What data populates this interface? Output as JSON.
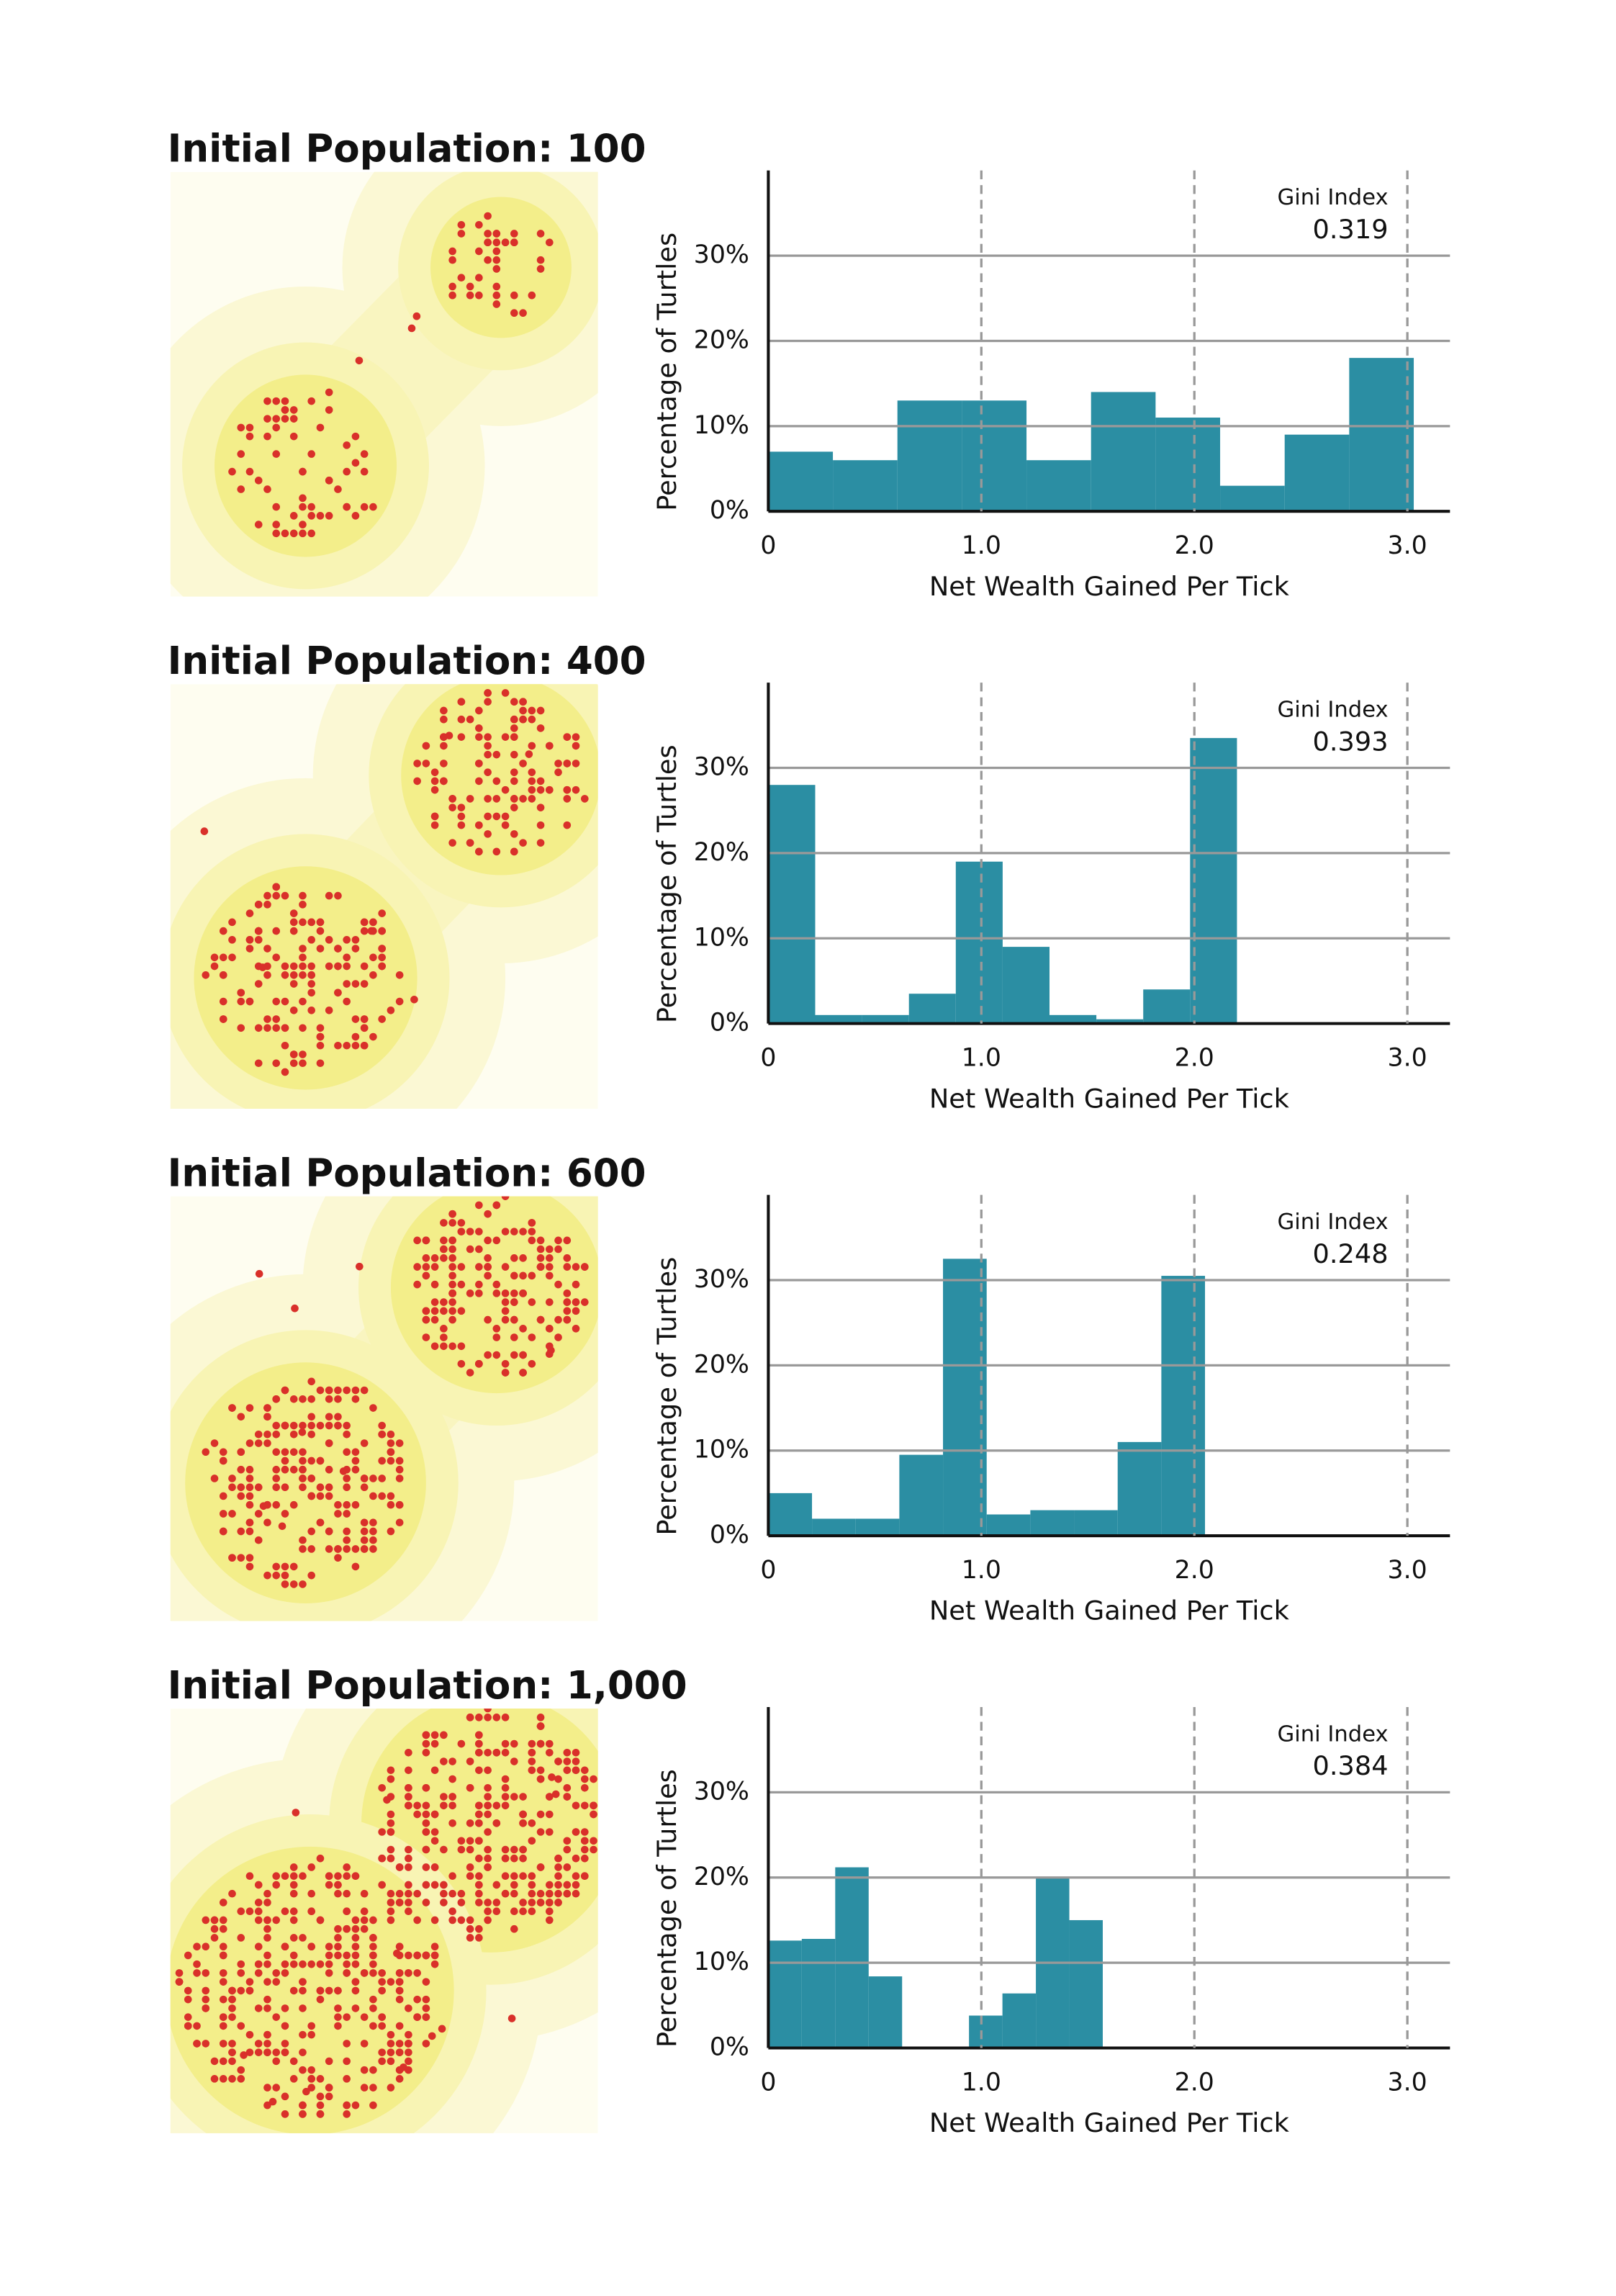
{
  "chart_data": [
    {
      "type": "histogram",
      "title": "Initial Population: 100",
      "xlabel": "Net Wealth Gained Per Tick",
      "ylabel": "Percentage of Turtles",
      "annotation": {
        "label": "Gini Index",
        "value": 0.319
      },
      "bins": [
        0,
        0.303,
        0.606,
        0.909,
        1.212,
        1.515,
        1.818,
        2.121,
        2.424,
        2.727,
        3.03
      ],
      "values": [
        7,
        6,
        13,
        13,
        6,
        14,
        11,
        3,
        9,
        18
      ],
      "color": "#2b8ea3",
      "xlim": [
        0,
        3.2
      ],
      "xticks": [
        0,
        {
          "value": 1,
          "label": "1.0"
        },
        {
          "value": 2,
          "label": "2.0"
        },
        {
          "value": 3,
          "label": "3.0"
        }
      ],
      "ylim": [
        0,
        40
      ],
      "yticks": [
        {
          "value": 0,
          "label": "0%"
        },
        {
          "value": 10,
          "label": "10%"
        },
        {
          "value": 20,
          "label": "20%"
        },
        {
          "value": 30,
          "label": "30%"
        }
      ],
      "grid": true
    },
    {
      "type": "histogram",
      "title": "Initial Population: 400",
      "xlabel": "Net Wealth Gained Per Tick",
      "ylabel": "Percentage of Turtles",
      "annotation": {
        "label": "Gini Index",
        "value": 0.393
      },
      "bins": [
        0,
        0.22,
        0.44,
        0.66,
        0.88,
        1.1,
        1.32,
        1.54,
        1.76,
        1.98,
        2.2
      ],
      "values": [
        28,
        1,
        1,
        3.5,
        19,
        9,
        1,
        0.5,
        4,
        33.5
      ],
      "color": "#2b8ea3",
      "xlim": [
        0,
        3.2
      ],
      "xticks": [
        0,
        {
          "value": 1,
          "label": "1.0"
        },
        {
          "value": 2,
          "label": "2.0"
        },
        {
          "value": 3,
          "label": "3.0"
        }
      ],
      "ylim": [
        0,
        40
      ],
      "yticks": [
        {
          "value": 0,
          "label": "0%"
        },
        {
          "value": 10,
          "label": "10%"
        },
        {
          "value": 20,
          "label": "20%"
        },
        {
          "value": 30,
          "label": "30%"
        }
      ],
      "grid": true
    },
    {
      "type": "histogram",
      "title": "Initial Population: 600",
      "xlabel": "Net Wealth Gained Per Tick",
      "ylabel": "Percentage of Turtles",
      "annotation": {
        "label": "Gini Index",
        "value": 0.248
      },
      "bins": [
        0,
        0.205,
        0.41,
        0.615,
        0.82,
        1.025,
        1.23,
        1.435,
        1.64,
        1.845,
        2.05
      ],
      "values": [
        5,
        2,
        2,
        9.5,
        32.5,
        2.5,
        3,
        3,
        11,
        30.5
      ],
      "color": "#2b8ea3",
      "xlim": [
        0,
        3.2
      ],
      "xticks": [
        0,
        {
          "value": 1,
          "label": "1.0"
        },
        {
          "value": 2,
          "label": "2.0"
        },
        {
          "value": 3,
          "label": "3.0"
        }
      ],
      "ylim": [
        0,
        40
      ],
      "yticks": [
        {
          "value": 0,
          "label": "0%"
        },
        {
          "value": 10,
          "label": "10%"
        },
        {
          "value": 20,
          "label": "20%"
        },
        {
          "value": 30,
          "label": "30%"
        }
      ],
      "grid": true
    },
    {
      "type": "histogram",
      "title": "Initial Population: 1,000",
      "xlabel": "Net Wealth Gained Per Tick",
      "ylabel": "Percentage of Turtles",
      "annotation": {
        "label": "Gini Index",
        "value": 0.384
      },
      "bins": [
        0,
        0.157,
        0.314,
        0.471,
        0.628,
        0.785,
        0.942,
        1.099,
        1.256,
        1.413,
        1.57
      ],
      "values": [
        12.6,
        12.8,
        21.2,
        8.4,
        0,
        0,
        3.8,
        6.4,
        20,
        15
      ],
      "color": "#2b8ea3",
      "xlim": [
        0,
        3.2
      ],
      "xticks": [
        0,
        {
          "value": 1,
          "label": "1.0"
        },
        {
          "value": 2,
          "label": "2.0"
        },
        {
          "value": 3,
          "label": "3.0"
        }
      ],
      "ylim": [
        0,
        40
      ],
      "yticks": [
        {
          "value": 0,
          "label": "0%"
        },
        {
          "value": 10,
          "label": "10%"
        },
        {
          "value": 20,
          "label": "20%"
        },
        {
          "value": 30,
          "label": "30%"
        }
      ],
      "grid": true
    }
  ]
}
